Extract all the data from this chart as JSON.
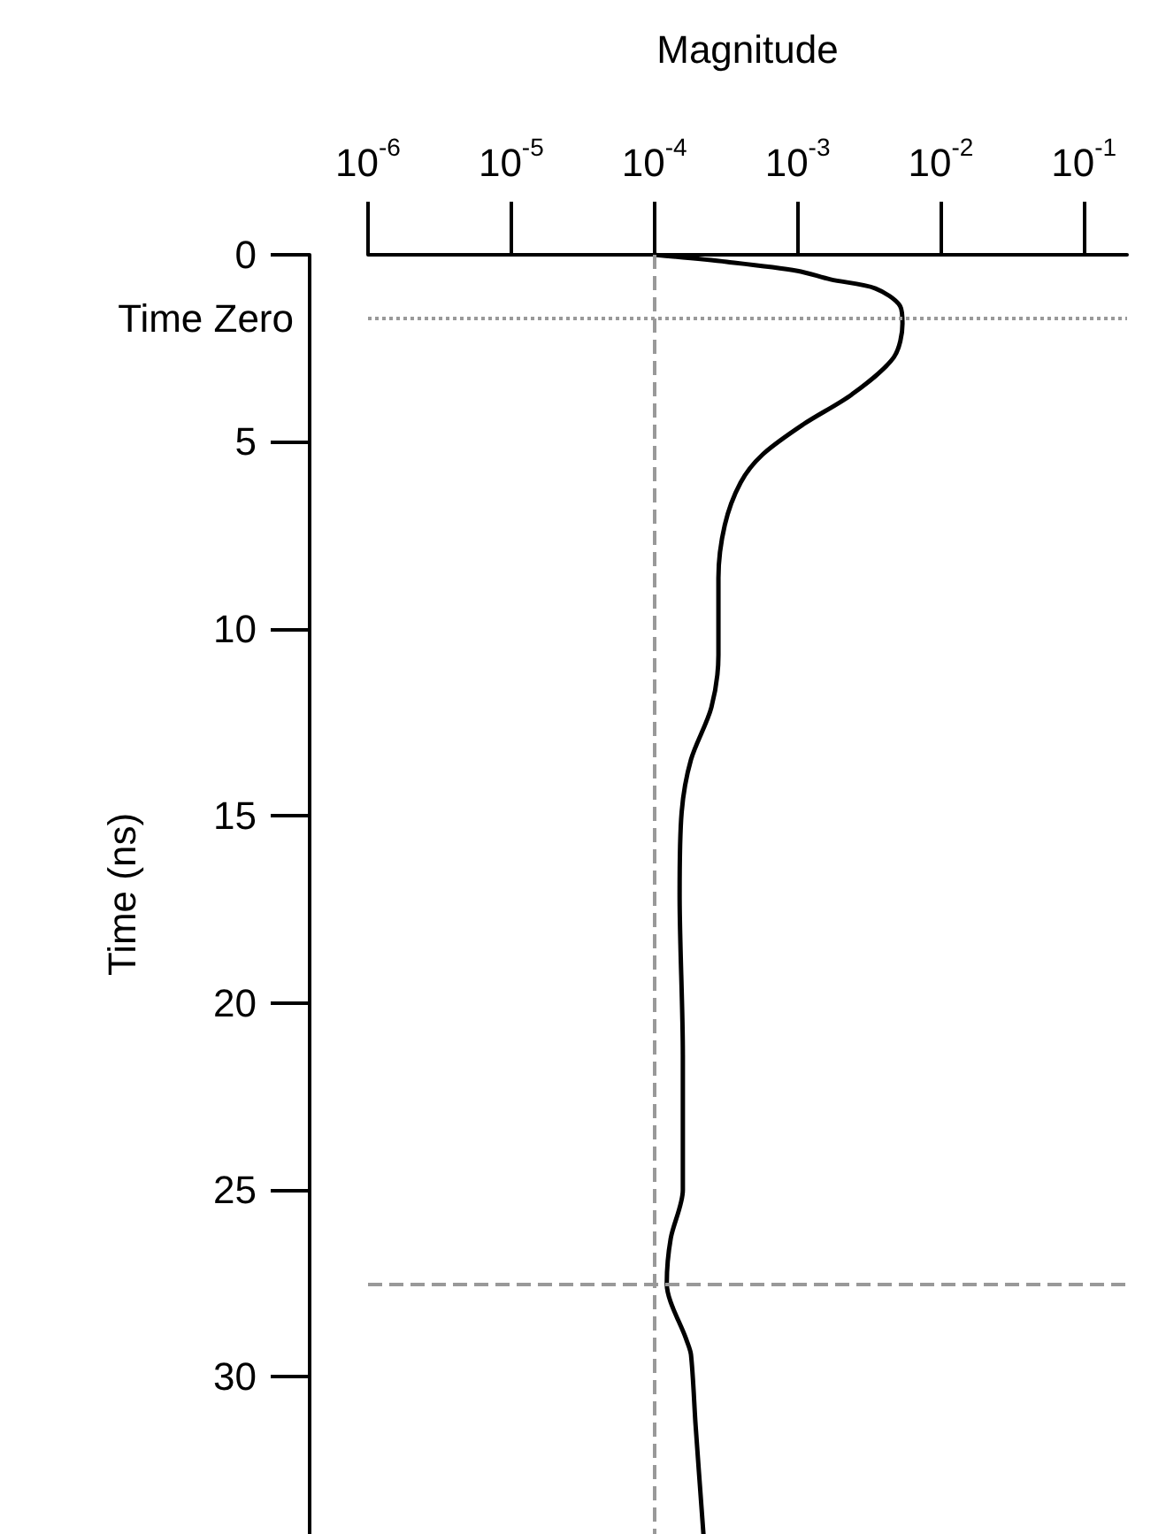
{
  "chart_data": {
    "type": "line",
    "xlabel": "Magnitude",
    "ylabel": "Time (ns)",
    "log": "x",
    "xlim": [
      1e-06,
      0.2
    ],
    "ylim": [
      34.2,
      0
    ],
    "xticks": [
      {
        "value": 1e-06,
        "label": "10$^{-6}$"
      },
      {
        "value": 1e-05,
        "label": "10$^{-5}$"
      },
      {
        "value": 0.0001,
        "label": "10$^{-4}$"
      },
      {
        "value": 0.001,
        "label": "10$^{-3}$"
      },
      {
        "value": 0.01,
        "label": "10$^{-2}$"
      },
      {
        "value": 0.1,
        "label": "10$^{-1}$"
      }
    ],
    "yticks": [
      0,
      5,
      10,
      15,
      20,
      25,
      30
    ],
    "grid": false,
    "marker": "none",
    "line_style": "solid",
    "series": [
      {
        "color": "#000000",
        "x": [
          0.0001,
          0.00032,
          0.001,
          0.0017,
          0.0035,
          0.0052,
          0.0054,
          0.0047,
          0.0024,
          0.0011,
          0.00057,
          0.0004,
          0.00031,
          0.00028,
          0.00028,
          0.00025,
          0.00018,
          0.000155,
          0.00015,
          0.000158,
          0.000158,
          0.00013,
          0.000122,
          0.000167,
          0.00018,
          0.000194,
          0.00022
        ],
        "values": [
          0,
          0.19,
          0.43,
          0.66,
          0.9,
          1.37,
          1.84,
          2.74,
          3.73,
          4.53,
          5.34,
          6.09,
          7.23,
          8.64,
          10.7,
          12.1,
          13.5,
          14.9,
          17.1,
          21.4,
          25.0,
          26.3,
          27.5,
          29.0,
          29.4,
          31.3,
          34.2
        ]
      }
    ],
    "ref_lines": [
      {
        "axis": "y",
        "value": 1.7,
        "label": "Time Zero",
        "color": "#999999",
        "line_style": "dotted"
      },
      {
        "axis": "x",
        "value": 0.0001,
        "label": null,
        "color": "#999999",
        "line_style": "dashed"
      },
      {
        "axis": "y",
        "value": 27.5,
        "label": null,
        "color": "#999999",
        "line_style": "dashed"
      }
    ]
  }
}
